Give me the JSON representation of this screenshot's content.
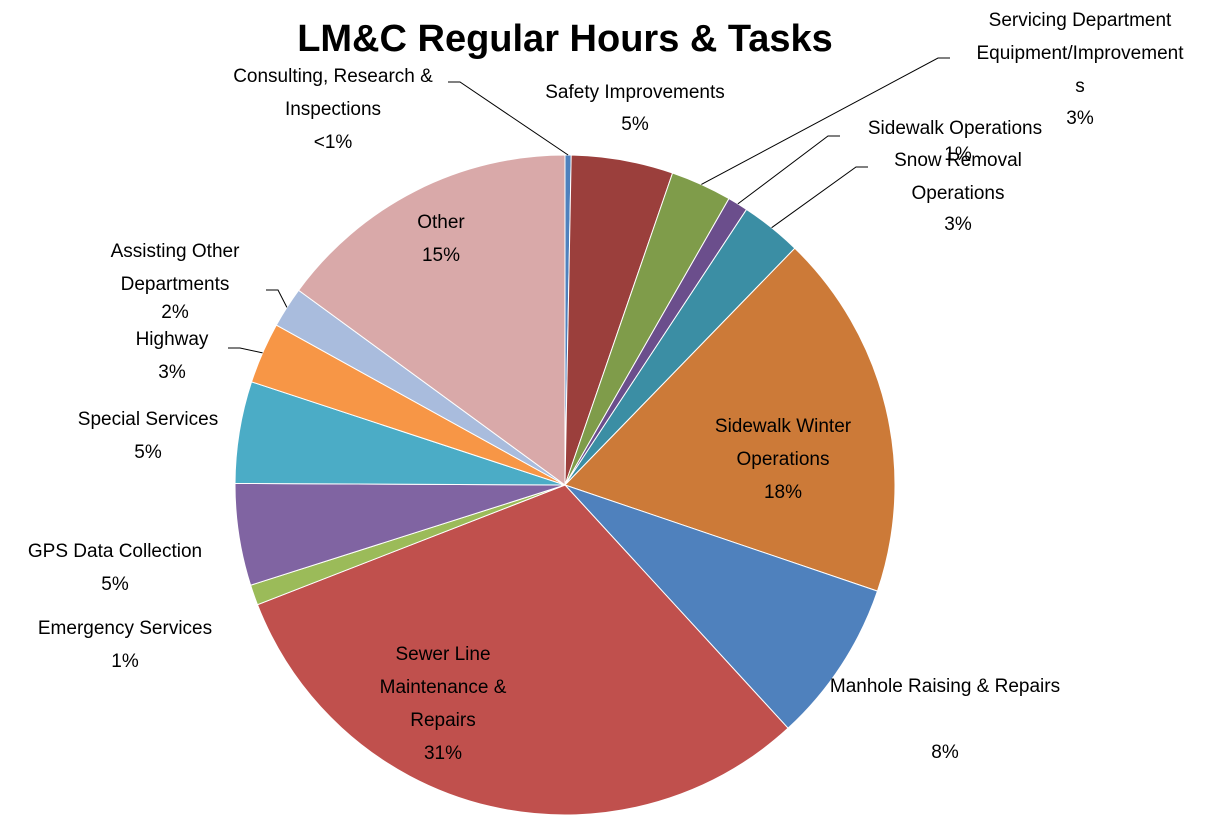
{
  "chart_data": {
    "type": "pie",
    "title": "LM&C Regular Hours & Tasks",
    "categories": [
      "Consulting, Research & Inspections",
      "Safety Improvements",
      "Servicing Department Equipment/Improvements",
      "Sidewalk Operations",
      "Snow Removal Operations",
      "Sidewalk Winter Operations",
      "Manhole Raising & Repairs",
      "Sewer Line Maintenance & Repairs",
      "Emergency Services",
      "GPS Data Collection",
      "Special Services",
      "Highway",
      "Assisting Other Departments",
      "Other"
    ],
    "values": [
      0.3,
      5,
      3,
      1,
      3,
      18,
      8,
      31,
      1,
      5,
      5,
      3,
      2,
      15
    ],
    "value_labels": [
      "<1%",
      "5%",
      "3%",
      "1%",
      "3%",
      "18%",
      "8%",
      "31%",
      "1%",
      "5%",
      "5%",
      "3%",
      "2%",
      "15%"
    ],
    "colors": [
      "#4f81bd",
      "#9b3f3c",
      "#7f9c4a",
      "#6b4e8c",
      "#3b8ea4",
      "#cc7a38",
      "#4f81bd",
      "#c0504d",
      "#9bbb59",
      "#8064a2",
      "#4bacc6",
      "#f79646",
      "#a9bcdd",
      "#d9a9a9"
    ]
  }
}
